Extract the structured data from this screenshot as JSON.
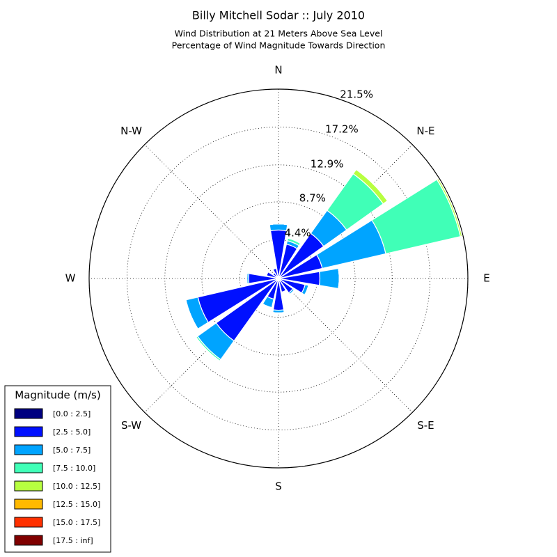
{
  "chart_data": {
    "type": "windrose",
    "title": "Billy Mitchell Sodar :: July 2010",
    "subtitle": [
      "Wind Distribution at 21 Meters Above Sea Level",
      "Percentage of Wind Magnitude Towards Direction"
    ],
    "categories": [
      "N",
      null,
      "N-E",
      null,
      "E",
      null,
      "S-E",
      null,
      "S",
      null,
      "S-W",
      null,
      "W",
      null,
      "N-W",
      null
    ],
    "ylim": [
      0,
      21.5
    ],
    "yticks": [
      {
        "value": 4.4,
        "label": "4.4%"
      },
      {
        "value": 8.7,
        "label": "8.7%"
      },
      {
        "value": 12.9,
        "label": "12.9%"
      },
      {
        "value": 17.2,
        "label": "17.2%"
      },
      {
        "value": 21.5,
        "label": "21.5%"
      }
    ],
    "grid": true,
    "legend_title": "Magnitude (m/s)",
    "legend_position": "lower left",
    "series": [
      {
        "name": "[0.0 : 2.5]",
        "color": "#000080",
        "values": [
          0.3,
          0.3,
          0.3,
          0.3,
          0.3,
          0.3,
          0.3,
          0.3,
          0.3,
          0.3,
          0.3,
          0.3,
          0.3,
          0.3,
          0.3,
          0.3
        ]
      },
      {
        "name": "[2.5 : 5.0]",
        "color": "#0010ff",
        "values": [
          5.2,
          3.7,
          6.0,
          4.8,
          4.4,
          2.8,
          1.7,
          1.3,
          3.3,
          2.1,
          8.4,
          9.1,
          3.1,
          1.1,
          0.5,
          0.9
        ]
      },
      {
        "name": "[5.0 : 7.5]",
        "color": "#00a4ff",
        "values": [
          0.7,
          0.4,
          3.2,
          7.4,
          2.2,
          0.4,
          0.2,
          0,
          0.3,
          1.0,
          2.6,
          1.4,
          0.2,
          0,
          0,
          0
        ]
      },
      {
        "name": "[7.5 : 10.0]",
        "color": "#40ffb7",
        "values": [
          0,
          0.3,
          5.1,
          8.7,
          0,
          0,
          0,
          0,
          0.1,
          0,
          0.2,
          0,
          0,
          0,
          0,
          0
        ]
      },
      {
        "name": "[10.0 : 12.5]",
        "color": "#b7ff40",
        "values": [
          0,
          0,
          0.6,
          0.2,
          0,
          0,
          0,
          0,
          0,
          0,
          0,
          0,
          0,
          0,
          0,
          0
        ]
      },
      {
        "name": "[12.5 : 15.0]",
        "color": "#ffb900",
        "values": [
          0,
          0,
          0,
          0,
          0,
          0,
          0,
          0,
          0,
          0,
          0,
          0,
          0,
          0,
          0,
          0
        ]
      },
      {
        "name": "[15.0 : 17.5]",
        "color": "#ff3000",
        "values": [
          0,
          0,
          0,
          0,
          0,
          0,
          0,
          0,
          0,
          0,
          0,
          0,
          0,
          0,
          0,
          0
        ]
      },
      {
        "name": "[17.5 : inf]",
        "color": "#800000",
        "values": [
          0,
          0,
          0,
          0,
          0,
          0,
          0,
          0,
          0,
          0,
          0,
          0,
          0,
          0,
          0,
          0
        ]
      }
    ]
  }
}
